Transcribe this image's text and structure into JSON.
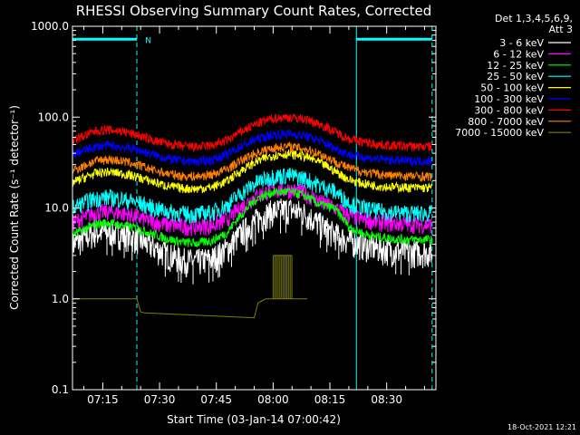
{
  "chart_data": {
    "type": "line",
    "title": "RHESSI Observing Summary Count Rates, Corrected",
    "xlabel": "Start Time (03-Jan-14 07:00:42)",
    "ylabel": "Corrected Count Rate (s⁻¹ detector⁻¹)",
    "yscale": "log",
    "ylim": [
      0.1,
      1000
    ],
    "xlim_minutes": [
      7.0,
      103.0
    ],
    "x_tick_labels": [
      "07:15",
      "07:30",
      "07:45",
      "08:00",
      "08:15",
      "08:30"
    ],
    "x_tick_minutes": [
      15,
      30,
      45,
      60,
      75,
      90
    ],
    "y_tick_labels": [
      "0.1",
      "1.0",
      "10.0",
      "100.0",
      "1000.0"
    ],
    "y_tick_values": [
      0.1,
      1,
      10,
      100,
      1000
    ],
    "legend_header": [
      "Det 1,3,4,5,6,9,",
      "Att 3"
    ],
    "legend_placement": "right, outside",
    "timestamp": "18-Oct-2021 12:21",
    "annotations": [
      {
        "text": "N",
        "x_minute": 25.5,
        "y": 720
      }
    ],
    "night_bars": [
      {
        "x_start": 7.0,
        "x_end": 24.0,
        "y": 720,
        "color": "#00ffff"
      },
      {
        "x_start": 82.0,
        "x_end": 102.0,
        "y": 720,
        "color": "#00ffff"
      }
    ],
    "vertical_markers": [
      {
        "x_minute": 7.0,
        "style": "solid",
        "color": "#00ffff"
      },
      {
        "x_minute": 24.0,
        "style": "dashed",
        "color": "#00ffff"
      },
      {
        "x_minute": 82.0,
        "style": "solid",
        "color": "#00ffff"
      },
      {
        "x_minute": 102.0,
        "style": "dashed",
        "color": "#00ffff"
      }
    ],
    "series": [
      {
        "name": "3 - 6 keV",
        "color": "#ffffff",
        "x": [
          7,
          10,
          13,
          16,
          20,
          24,
          28,
          32,
          36,
          40,
          44,
          48,
          52,
          56,
          60,
          64,
          68,
          72,
          76,
          80,
          84,
          88,
          92,
          96,
          100,
          102
        ],
        "y": [
          4.0,
          4.6,
          5.4,
          5.5,
          5.2,
          4.6,
          3.8,
          3.1,
          2.7,
          2.6,
          2.8,
          3.6,
          5.5,
          7.6,
          9.3,
          9.8,
          8.9,
          6.8,
          5.2,
          4.4,
          3.9,
          3.6,
          3.4,
          3.3,
          3.3,
          3.3
        ]
      },
      {
        "name": "6 - 12 keV",
        "color": "#ff00ff",
        "x": [
          7,
          10,
          13,
          16,
          20,
          24,
          28,
          32,
          36,
          40,
          44,
          48,
          52,
          56,
          60,
          64,
          68,
          72,
          76,
          80,
          84,
          88,
          92,
          96,
          100,
          102
        ],
        "y": [
          7.0,
          7.8,
          8.9,
          9.2,
          8.8,
          8.0,
          7.1,
          6.6,
          6.3,
          6.3,
          6.5,
          7.6,
          10.5,
          14.0,
          15.8,
          16.0,
          14.8,
          12.0,
          10.2,
          8.4,
          7.5,
          7.0,
          6.8,
          6.7,
          6.6,
          6.6
        ]
      },
      {
        "name": "12 - 25 keV",
        "color": "#00ff00",
        "x": [
          7,
          10,
          13,
          16,
          20,
          24,
          28,
          32,
          36,
          40,
          44,
          48,
          52,
          56,
          60,
          64,
          68,
          72,
          76,
          80,
          84,
          88,
          92,
          96,
          100,
          102
        ],
        "y": [
          5.0,
          5.8,
          6.6,
          6.9,
          6.5,
          6.0,
          5.2,
          4.6,
          4.2,
          4.1,
          4.4,
          5.4,
          8.8,
          13.0,
          15.0,
          15.2,
          14.0,
          11.0,
          10.0,
          6.2,
          5.2,
          4.8,
          4.6,
          4.5,
          4.5,
          4.5
        ]
      },
      {
        "name": "25 - 50 keV",
        "color": "#00ffff",
        "x": [
          7,
          10,
          13,
          16,
          20,
          24,
          28,
          32,
          36,
          40,
          44,
          48,
          52,
          56,
          60,
          64,
          68,
          72,
          76,
          80,
          84,
          88,
          92,
          96,
          100,
          102
        ],
        "y": [
          10.0,
          11.5,
          12.8,
          13.2,
          12.6,
          11.6,
          10.2,
          9.2,
          8.7,
          8.6,
          9.0,
          10.8,
          15.0,
          19.5,
          22.5,
          23.0,
          21.5,
          18.0,
          15.5,
          11.5,
          10.0,
          9.3,
          9.0,
          8.8,
          8.8,
          8.8
        ]
      },
      {
        "name": "50 - 100 keV",
        "color": "#ffff00",
        "x": [
          7,
          10,
          13,
          16,
          20,
          24,
          28,
          32,
          36,
          40,
          44,
          48,
          52,
          56,
          60,
          64,
          68,
          72,
          76,
          80,
          84,
          88,
          92,
          96,
          100,
          102
        ],
        "y": [
          19.0,
          21.5,
          24.0,
          25.0,
          24.0,
          22.0,
          19.5,
          17.5,
          16.5,
          16.3,
          17.0,
          20.0,
          26.5,
          33.0,
          38.0,
          39.5,
          37.5,
          32.0,
          26.0,
          20.5,
          18.5,
          17.5,
          17.0,
          16.8,
          16.7,
          16.7
        ]
      },
      {
        "name": "100 - 300 keV",
        "color": "#0000ff",
        "x": [
          7,
          10,
          13,
          16,
          20,
          24,
          28,
          32,
          36,
          40,
          44,
          48,
          52,
          56,
          60,
          64,
          68,
          72,
          76,
          80,
          84,
          88,
          92,
          96,
          100,
          102
        ],
        "y": [
          39.0,
          43.0,
          47.0,
          49.0,
          47.0,
          44.0,
          39.0,
          35.0,
          33.0,
          32.5,
          34.0,
          39.0,
          49.0,
          58.0,
          64.0,
          66.0,
          63.0,
          56.0,
          46.0,
          39.0,
          36.0,
          34.5,
          33.5,
          33.0,
          33.0,
          33.0
        ]
      },
      {
        "name": "300 - 800 keV",
        "color": "#ff0000",
        "x": [
          7,
          10,
          13,
          16,
          20,
          24,
          28,
          32,
          36,
          40,
          44,
          48,
          52,
          56,
          60,
          64,
          68,
          72,
          76,
          80,
          84,
          88,
          92,
          96,
          100,
          102
        ],
        "y": [
          56.0,
          62.0,
          70.0,
          73.0,
          70.0,
          64.0,
          56.0,
          51.0,
          48.0,
          47.0,
          49.0,
          56.0,
          71.0,
          86.0,
          97.0,
          100.0,
          96.0,
          85.0,
          70.0,
          58.0,
          53.0,
          50.0,
          48.5,
          48.0,
          47.5,
          47.5
        ]
      },
      {
        "name": "800 - 7000 keV",
        "color": "#ff8000",
        "x": [
          7,
          10,
          13,
          16,
          20,
          24,
          28,
          32,
          36,
          40,
          44,
          48,
          52,
          56,
          60,
          64,
          68,
          72,
          76,
          80,
          84,
          88,
          92,
          96,
          100,
          102
        ],
        "y": [
          26.0,
          29.0,
          33.0,
          34.5,
          33.0,
          30.0,
          26.5,
          24.0,
          22.5,
          22.3,
          23.5,
          27.0,
          34.0,
          41.0,
          46.0,
          47.5,
          45.5,
          40.0,
          33.0,
          27.5,
          25.0,
          23.5,
          22.8,
          22.5,
          22.3,
          22.3
        ]
      },
      {
        "name": "7000 - 15000 keV",
        "color": "#808000",
        "x": [
          7,
          10,
          13,
          16,
          20,
          24,
          25,
          26,
          55,
          56,
          57,
          58,
          60,
          62,
          64,
          66,
          68,
          69
        ],
        "y": [
          1.0,
          1.0,
          1.0,
          1.0,
          1.0,
          1.0,
          0.72,
          0.7,
          0.62,
          0.9,
          0.95,
          1.0,
          1.0,
          1.0,
          1.0,
          1.0,
          1.0,
          1.0
        ]
      }
    ],
    "spikes_7000_15000": {
      "x_start": 60.0,
      "x_end": 65.0,
      "y_peak": 3.0,
      "y_base": 1.0
    }
  }
}
